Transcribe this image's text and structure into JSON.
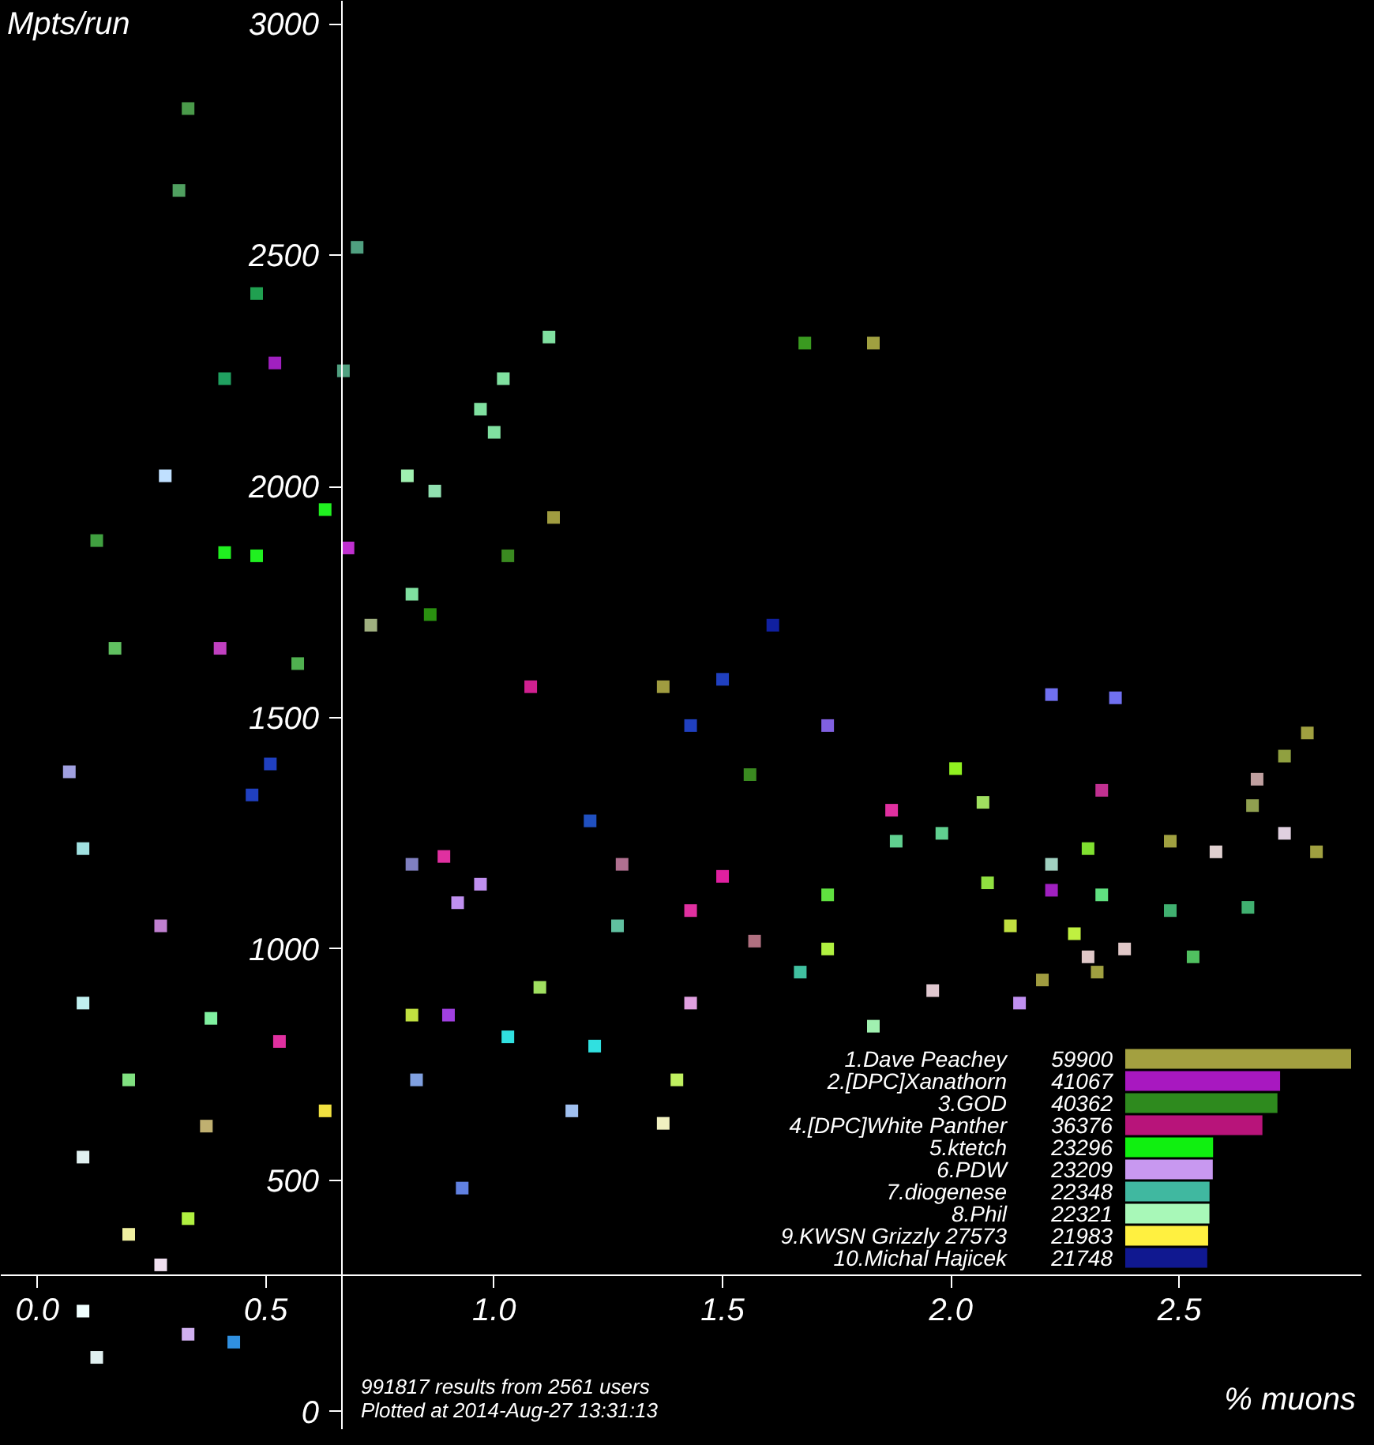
{
  "chart_data": [
    {
      "type": "scatter",
      "xlabel": "% muons",
      "ylabel": "Mpts/run",
      "annotations": [
        "991817 results from 2561 users",
        "Plotted at 2014-Aug-27 13:31:13"
      ],
      "xlim": [
        -0.08,
        2.9
      ],
      "ylim": [
        -40,
        3050
      ],
      "xticks": [
        {
          "value": 0,
          "label": "0.0"
        },
        0.5,
        {
          "value": 1,
          "label": "1.0"
        },
        1.5,
        {
          "value": 2,
          "label": "2.0"
        },
        2.5
      ],
      "yticks": [
        0,
        500,
        1000,
        1500,
        2000,
        2500,
        3000
      ],
      "marker": "square",
      "x": [
        0.33,
        0.31,
        0.48,
        0.52,
        0.41,
        0.67,
        0.7,
        0.81,
        0.87,
        0.97,
        1.02,
        1.12,
        1.0,
        0.82,
        0.86,
        0.73,
        1.13,
        1.03,
        1.08,
        1.37,
        0.63,
        0.48,
        0.41,
        0.68,
        0.28,
        1.83,
        1.68,
        1.61,
        1.5,
        1.43,
        2.36,
        2.22,
        2.78,
        2.73,
        2.67,
        2.66,
        2.73,
        2.8,
        2.48,
        2.58,
        1.98,
        1.88,
        2.3,
        2.22,
        2.22,
        2.08,
        2.01,
        1.87,
        2.33,
        2.65,
        2.48,
        1.56,
        1.5,
        2.27,
        2.38,
        2.3,
        2.32,
        2.2,
        2.15,
        1.96,
        1.73,
        1.83,
        1.67,
        1.57,
        0.51,
        0.47,
        1.21,
        0.89,
        0.82,
        0.97,
        0.92,
        1.28,
        1.43,
        0.82,
        0.9,
        1.03,
        1.22,
        0.53,
        0.38,
        0.63,
        1.37,
        0.37,
        0.33,
        0.13,
        0.27,
        0.43,
        0.33,
        0.1,
        0.1,
        0.1,
        0.1,
        0.2,
        0.83,
        1.1,
        1.27,
        1.73,
        2.13,
        0.17,
        0.07,
        0.27,
        0.2,
        0.57,
        0.13,
        0.4,
        1.73,
        2.07,
        2.33,
        2.53,
        1.43,
        1.17,
        0.93,
        1.4
      ],
      "values": [
        2817,
        2640,
        2417,
        2267,
        2233,
        2250,
        2517,
        2023,
        1990,
        2167,
        2233,
        2323,
        2117,
        1767,
        1723,
        1700,
        1933,
        1850,
        1567,
        1567,
        1950,
        1850,
        1857,
        1867,
        2023,
        2310,
        2310,
        1700,
        1583,
        1483,
        1543,
        1550,
        1467,
        1417,
        1367,
        1310,
        1250,
        1210,
        1233,
        1210,
        1250,
        1233,
        1217,
        1183,
        1127,
        1143,
        1390,
        1300,
        1343,
        1090,
        1083,
        1377,
        1157,
        1033,
        1000,
        983,
        950,
        933,
        883,
        910,
        1000,
        833,
        950,
        1017,
        1400,
        1333,
        1277,
        1200,
        1183,
        1140,
        1100,
        1183,
        1083,
        857,
        857,
        810,
        790,
        800,
        850,
        650,
        623,
        617,
        417,
        117,
        317,
        150,
        167,
        217,
        550,
        883,
        1217,
        383,
        717,
        917,
        1050,
        1117,
        1050,
        1650,
        1383,
        1050,
        717,
        1617,
        1883,
        1650,
        1483,
        1317,
        1117,
        983,
        883,
        650,
        483,
        717
      ],
      "colors": [
        "#4a9a4a",
        "#50a060",
        "#20a050",
        "#a020c0",
        "#20a060",
        "#50a080",
        "#50a080",
        "#a0f0b0",
        "#90e0b0",
        "#80e0a0",
        "#80e0a0",
        "#80e0a0",
        "#80e0a0",
        "#80e0a0",
        "#2a9010",
        "#a0b080",
        "#a09c40",
        "#3a8a20",
        "#d02090",
        "#a09c40",
        "#20f020",
        "#20f020",
        "#20f020",
        "#c030d0",
        "#c0e0ff",
        "#a0a040",
        "#3a9a20",
        "#1020a0",
        "#2040c0",
        "#2040c0",
        "#7070f0",
        "#7070f0",
        "#a0a040",
        "#90a040",
        "#c0a0a0",
        "#90a050",
        "#e0d0e0",
        "#a0a040",
        "#a0a040",
        "#e0d0d0",
        "#60d090",
        "#60d090",
        "#80e030",
        "#a0d0c0",
        "#a020c0",
        "#90e040",
        "#90f020",
        "#e030a0",
        "#c03090",
        "#40b070",
        "#40b070",
        "#3a8a20",
        "#e020a0",
        "#c0f040",
        "#e0c8c8",
        "#e0c8c8",
        "#a0a040",
        "#a09c40",
        "#c090f0",
        "#e0c8d0",
        "#b0f040",
        "#a0f0b0",
        "#40c0a0",
        "#b07080",
        "#2040c0",
        "#2040c0",
        "#2050c0",
        "#e030a0",
        "#8080c0",
        "#c090f0",
        "#c090f0",
        "#b07090",
        "#e030a0",
        "#c0e040",
        "#a040e0",
        "#30e0e0",
        "#30e0e0",
        "#e030a0",
        "#80f0a0",
        "#f0e040",
        "#f0f0c0",
        "#c0b070",
        "#b0f040",
        "#e0f0f0",
        "#f0e0f0",
        "#3090e0",
        "#d0b0f0",
        "#f0ffff",
        "#e0f0f0",
        "#c0f0f0",
        "#a0e0e0",
        "#f0f0a0",
        "#80a0e0",
        "#a0e060",
        "#60c0a0",
        "#60e040",
        "#c0e040",
        "#60c060",
        "#a0a0e0",
        "#c080d0",
        "#80e080",
        "#50b050",
        "#40a040",
        "#c040c0",
        "#8060e0",
        "#a0e060",
        "#60e080",
        "#50c060",
        "#e0a0e0",
        "#a0c0f0",
        "#6080e0",
        "#c0f060"
      ]
    },
    {
      "type": "bar",
      "orientation": "horizontal",
      "data_labels": true,
      "categories": [
        "1.Dave Peachey",
        "2.[DPC]Xanathorn",
        "3.GOD",
        "4.[DPC]White Panther",
        "5.ktetch",
        "6.PDW",
        "7.diogenese",
        "8.Phil",
        "9.KWSN Grizzly 27573",
        "10.Michal Hajicek"
      ],
      "values": [
        59900,
        41067,
        40362,
        36376,
        23296,
        23209,
        22348,
        22321,
        21983,
        21748
      ],
      "colors": [
        "#a3a040",
        "#a818c0",
        "#2e8a1e",
        "#b8147a",
        "#10f010",
        "#c898f0",
        "#40b8a0",
        "#a8f8b8",
        "#fff040",
        "#101890"
      ]
    }
  ]
}
